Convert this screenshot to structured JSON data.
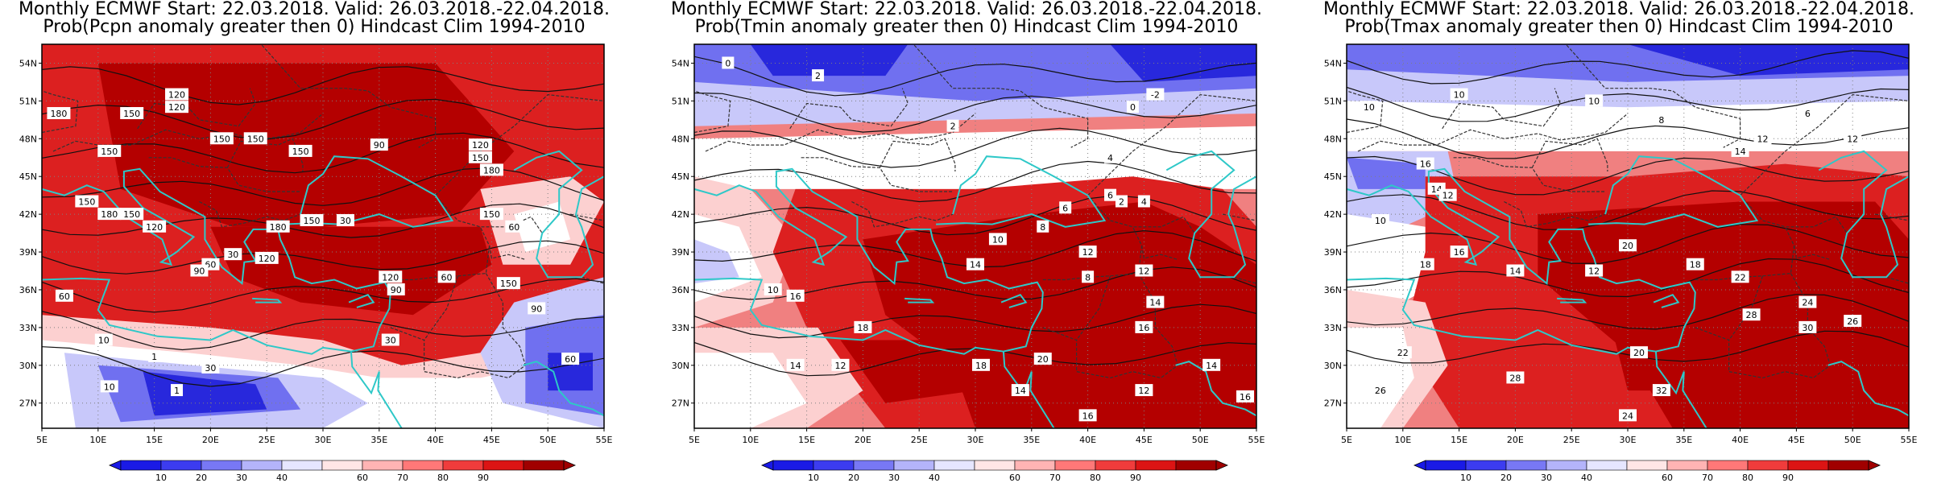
{
  "panels": [
    {
      "title_line1": "Monthly ECMWF Start: 22.03.2018. Valid: 26.03.2018.-22.04.2018.",
      "title_line2": "Prob(Pcpn anomaly greater then 0) Hindcast Clim 1994-2010",
      "contour_labels": [
        "180",
        "150",
        "120",
        "120",
        "150",
        "150",
        "150",
        "150",
        "90",
        "120",
        "150",
        "180",
        "150",
        "180",
        "150",
        "120",
        "180",
        "150",
        "30",
        "60",
        "30",
        "120",
        "90",
        "150",
        "60",
        "150",
        "60",
        "120",
        "90",
        "30",
        "60",
        "10",
        "1",
        "1",
        "10",
        "30",
        "90",
        "60"
      ]
    },
    {
      "title_line1": "Monthly ECMWF Start: 22.03.2018. Valid: 26.03.2018.-22.04.2018.",
      "title_line2": "Prob(Tmin anomaly greater then 0) Hindcast Clim 1994-2010",
      "contour_labels": [
        "0",
        "2",
        "-2",
        "2",
        "0",
        "4",
        "6",
        "8",
        "10",
        "12",
        "14",
        "16",
        "14",
        "18",
        "12",
        "10",
        "4",
        "2",
        "6",
        "8",
        "12",
        "14",
        "16",
        "18",
        "20",
        "14",
        "16",
        "12",
        "14",
        "16"
      ]
    },
    {
      "title_line1": "Monthly ECMWF Start: 22.03.2018. Valid: 26.03.2018.-22.04.2018.",
      "title_line2": "Prob(Tmax anomaly greater then 0) Hindcast Clim 1994-2010",
      "contour_labels": [
        "10",
        "10",
        "8",
        "6",
        "10",
        "12",
        "14",
        "12",
        "16",
        "14",
        "12",
        "10",
        "18",
        "16",
        "14",
        "12",
        "20",
        "18",
        "22",
        "24",
        "26",
        "28",
        "30",
        "20",
        "26",
        "22",
        "28",
        "32",
        "24"
      ]
    }
  ],
  "axes": {
    "lat_labels": [
      "54N",
      "51N",
      "48N",
      "45N",
      "42N",
      "39N",
      "36N",
      "33N",
      "30N",
      "27N"
    ],
    "lon_labels": [
      "5E",
      "10E",
      "15E",
      "20E",
      "25E",
      "30E",
      "35E",
      "40E",
      "45E",
      "50E",
      "55E"
    ]
  },
  "colorbar": {
    "ticks": [
      "10",
      "20",
      "30",
      "40",
      "60",
      "70",
      "80",
      "90"
    ],
    "colors": [
      "#1a1ae6",
      "#3c3cf0",
      "#7878f5",
      "#b4b4fa",
      "#e6e6ff",
      "#ffe6e6",
      "#ffb4b4",
      "#ff7878",
      "#f03c3c",
      "#dc1414",
      "#a00000"
    ]
  },
  "colors": {
    "dark_red": "#b40000",
    "red": "#dc2020",
    "light_red": "#f08080",
    "pink": "#fcd0d0",
    "white": "#ffffff",
    "light_blue": "#c8c8fa",
    "mid_blue": "#7070f0",
    "blue": "#2828dc",
    "coast": "#2ec8c8",
    "border": "#000000"
  }
}
